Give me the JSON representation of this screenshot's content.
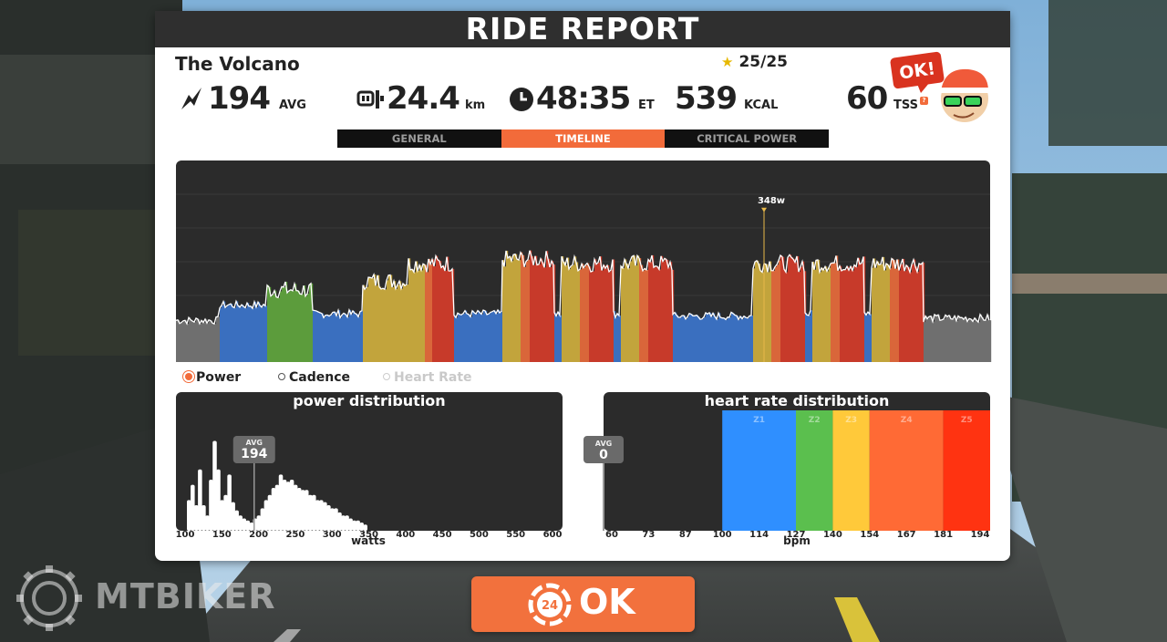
{
  "title": "RIDE REPORT",
  "route_name": "The Volcano",
  "stars": "25/25",
  "stats": {
    "power": {
      "value": "194",
      "unit": "AVG"
    },
    "distance": {
      "value": "24.4",
      "unit": "km"
    },
    "time": {
      "value": "48:35",
      "unit": "ET"
    },
    "calories": {
      "value": "539",
      "unit": "KCAL"
    },
    "tss": {
      "value": "60",
      "unit": "TSS"
    }
  },
  "coach_badge": "OK!",
  "tabs": [
    {
      "label": "GENERAL",
      "active": false
    },
    {
      "label": "TIMELINE",
      "active": true
    },
    {
      "label": "CRITICAL POWER",
      "active": false
    }
  ],
  "legend": [
    {
      "label": "Power",
      "selected": true
    },
    {
      "label": "Cadence",
      "selected": false
    },
    {
      "label": "Heart Rate",
      "selected": false
    }
  ],
  "power_distribution": {
    "title": "power distribution",
    "xlabel": "watts",
    "avg_label": "AVG",
    "avg_value": "194",
    "ticks": [
      "100",
      "150",
      "200",
      "250",
      "300",
      "350",
      "400",
      "450",
      "500",
      "550",
      "600"
    ]
  },
  "hr_distribution": {
    "title": "heart rate distribution",
    "xlabel": "bpm",
    "avg_label": "AVG",
    "avg_value": "0",
    "ticks": [
      "60",
      "73",
      "87",
      "100",
      "114",
      "127",
      "140",
      "154",
      "167",
      "181",
      "194"
    ],
    "zones": [
      {
        "name": "Z1",
        "color": "#2f8fff"
      },
      {
        "name": "Z2",
        "color": "#5bbf4e"
      },
      {
        "name": "Z3",
        "color": "#ffc93a"
      },
      {
        "name": "Z4",
        "color": "#ff6a35"
      },
      {
        "name": "Z5",
        "color": "#ff3311"
      }
    ]
  },
  "chart_data": [
    {
      "type": "area",
      "title": "",
      "peak_label": "348w",
      "peak_value": 348,
      "ylim": [
        0,
        460
      ],
      "zone_colors": {
        "grey": "#6f6f6f",
        "blue": "#3a6fbf",
        "green": "#5c9c3c",
        "yellow": "#c2a43c",
        "orange": "#d9663a",
        "red": "#c73a2a"
      },
      "segments": [
        {
          "start": 0,
          "end": 48,
          "level": 95,
          "zone": "grey"
        },
        {
          "start": 48,
          "end": 100,
          "level": 130,
          "zone": "blue"
        },
        {
          "start": 100,
          "end": 150,
          "level": 165,
          "zone": "green"
        },
        {
          "start": 150,
          "end": 205,
          "level": 110,
          "zone": "blue"
        },
        {
          "start": 205,
          "end": 255,
          "level": 185,
          "zone": "yellow"
        },
        {
          "start": 255,
          "end": 305,
          "level": 225,
          "zone": "red"
        },
        {
          "start": 305,
          "end": 358,
          "level": 110,
          "zone": "blue"
        },
        {
          "start": 358,
          "end": 415,
          "level": 235,
          "zone": "red"
        },
        {
          "start": 415,
          "end": 423,
          "level": 110,
          "zone": "blue"
        },
        {
          "start": 423,
          "end": 480,
          "level": 225,
          "zone": "red"
        },
        {
          "start": 480,
          "end": 488,
          "level": 110,
          "zone": "blue"
        },
        {
          "start": 488,
          "end": 545,
          "level": 225,
          "zone": "red"
        },
        {
          "start": 545,
          "end": 633,
          "level": 105,
          "zone": "blue"
        },
        {
          "start": 633,
          "end": 690,
          "level": 225,
          "zone": "red"
        },
        {
          "start": 690,
          "end": 698,
          "level": 110,
          "zone": "blue"
        },
        {
          "start": 698,
          "end": 755,
          "level": 225,
          "zone": "red"
        },
        {
          "start": 755,
          "end": 763,
          "level": 110,
          "zone": "blue"
        },
        {
          "start": 763,
          "end": 820,
          "level": 225,
          "zone": "red"
        },
        {
          "start": 820,
          "end": 893,
          "level": 100,
          "zone": "grey"
        }
      ]
    },
    {
      "type": "bar",
      "title": "power distribution",
      "xlabel": "watts",
      "xlim": [
        100,
        600
      ],
      "x": [
        105,
        110,
        115,
        120,
        125,
        130,
        135,
        140,
        145,
        150,
        155,
        160,
        165,
        170,
        175,
        180,
        185,
        190,
        195,
        200,
        205,
        210,
        215,
        220,
        225,
        230,
        235,
        240,
        245,
        250,
        255,
        260,
        265,
        270,
        275,
        280,
        285,
        290,
        295,
        300,
        305,
        310,
        315,
        320,
        325,
        330,
        335,
        340,
        345
      ],
      "values": [
        30,
        45,
        25,
        60,
        25,
        15,
        50,
        88,
        60,
        30,
        35,
        55,
        28,
        20,
        15,
        12,
        10,
        8,
        12,
        15,
        22,
        30,
        35,
        42,
        45,
        55,
        50,
        48,
        50,
        45,
        42,
        40,
        40,
        35,
        35,
        30,
        30,
        28,
        25,
        22,
        22,
        18,
        15,
        15,
        12,
        10,
        10,
        8,
        6
      ]
    },
    {
      "type": "bar",
      "title": "heart rate distribution",
      "xlabel": "bpm",
      "categories": [
        "Z1",
        "Z2",
        "Z3",
        "Z4",
        "Z5"
      ],
      "values": [
        100,
        100,
        100,
        100,
        100
      ],
      "bin_edges": [
        100,
        127,
        140,
        154,
        181,
        194
      ]
    }
  ]
}
